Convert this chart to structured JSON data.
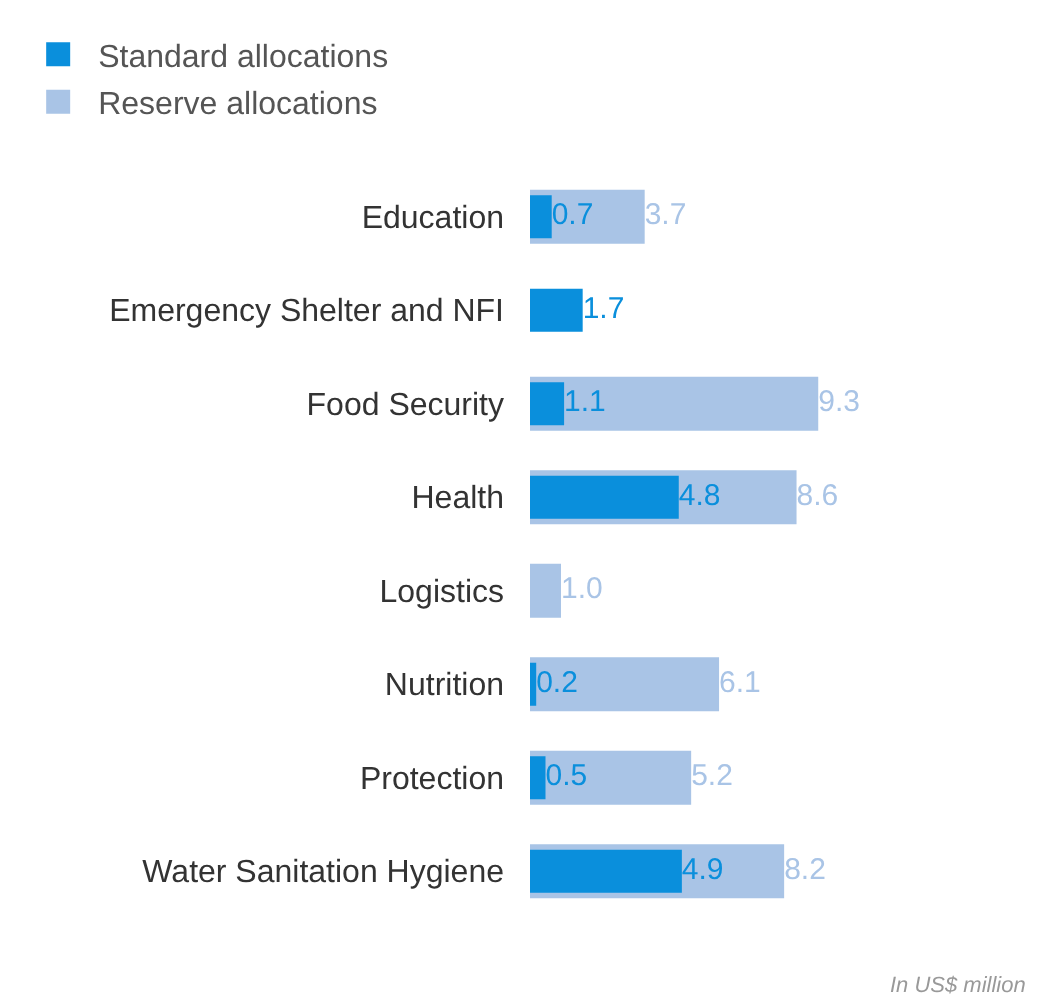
{
  "chart_data": {
    "type": "bar",
    "orientation": "horizontal",
    "legend": "top",
    "categories": [
      "Education",
      "Emergency Shelter and NFI",
      "Food Security",
      "Health",
      "Logistics",
      "Nutrition",
      "Protection",
      "Water Sanitation Hygiene"
    ],
    "series": [
      {
        "name": "Standard allocations",
        "color": "#0a8fdc",
        "values": [
          0.7,
          1.7,
          1.1,
          4.8,
          null,
          0.2,
          0.5,
          4.9
        ],
        "value_labels": [
          "0.7",
          "1.7",
          "1.1",
          "4.8",
          null,
          "0.2",
          "0.5",
          "4.9"
        ]
      },
      {
        "name": "Reserve allocations",
        "color": "#a9c4e6",
        "values": [
          3.7,
          null,
          9.3,
          8.6,
          1.0,
          6.1,
          5.2,
          8.2
        ],
        "value_labels": [
          "3.7",
          null,
          "9.3",
          "8.6",
          "1.0",
          "6.1",
          "5.2",
          "8.2"
        ]
      }
    ],
    "annotations": [
      "In US$ million"
    ]
  }
}
